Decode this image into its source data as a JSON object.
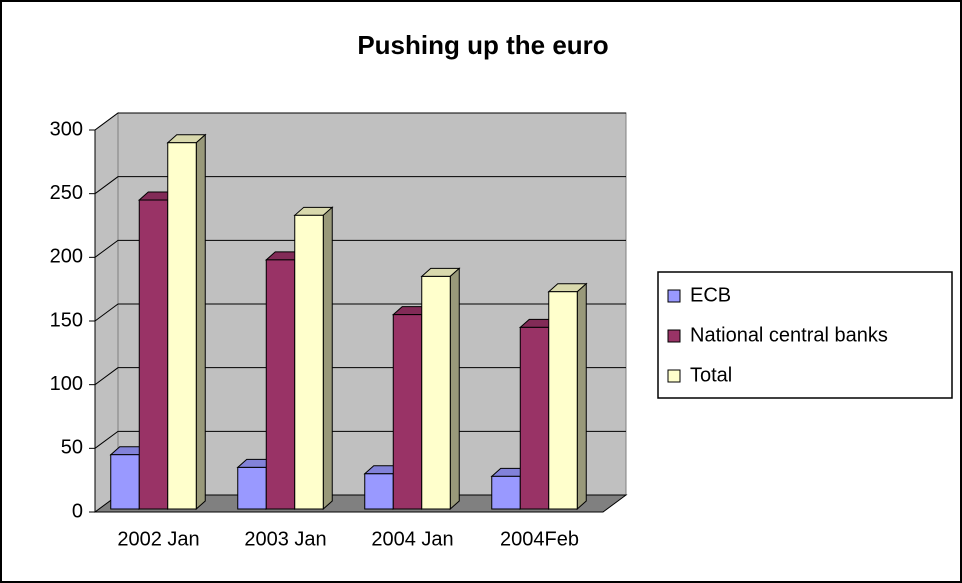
{
  "chart_data": {
    "type": "bar3d",
    "title": "Pushing up the euro",
    "categories": [
      "2002 Jan",
      "2003 Jan",
      "2004 Jan",
      "2004Feb"
    ],
    "series": [
      {
        "name": "ECB",
        "color": "#9999ff",
        "values": [
          45,
          35,
          30,
          28
        ]
      },
      {
        "name": "National central banks",
        "color": "#993366",
        "values": [
          245,
          198,
          155,
          145
        ]
      },
      {
        "name": "Total",
        "color": "#ffffcc",
        "values": [
          290,
          233,
          185,
          173
        ]
      }
    ],
    "ylim": [
      0,
      300
    ],
    "yticks": [
      0,
      50,
      100,
      150,
      200,
      250,
      300
    ],
    "grid": true,
    "legend": "right"
  }
}
